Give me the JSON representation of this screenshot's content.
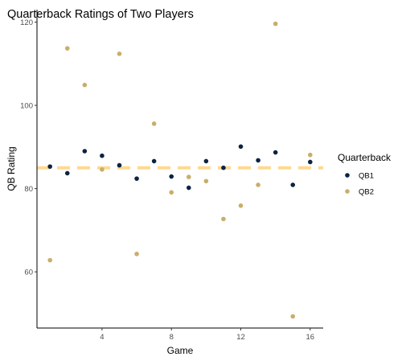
{
  "chart_data": {
    "type": "scatter",
    "title": "Quarterback Ratings of Two Players",
    "xlabel": "Game",
    "ylabel": "QB Rating",
    "xlim": [
      0.25,
      16.75
    ],
    "ylim": [
      46.5,
      123
    ],
    "xticks": [
      4,
      8,
      12,
      16
    ],
    "yticks": [
      60,
      80,
      100,
      120
    ],
    "grid": false,
    "legend_title": "Quarterback",
    "legend_position": "right",
    "reference_line": {
      "y": 85,
      "color": "#FFD990",
      "style": "dashed"
    },
    "series": [
      {
        "name": "QB1",
        "color": "#0C2340",
        "x": [
          1,
          2,
          3,
          4,
          5,
          6,
          7,
          8,
          9,
          10,
          11,
          12,
          13,
          14,
          15,
          16
        ],
        "y": [
          85.3,
          83.7,
          89.0,
          87.9,
          85.6,
          82.4,
          86.6,
          82.9,
          80.2,
          86.6,
          85.0,
          90.1,
          86.8,
          88.7,
          80.9,
          86.4
        ]
      },
      {
        "name": "QB2",
        "color": "#C9AE6A",
        "x": [
          1,
          2,
          3,
          4,
          5,
          6,
          7,
          8,
          9,
          10,
          11,
          12,
          13,
          14,
          15,
          16
        ],
        "y": [
          62.8,
          113.7,
          104.9,
          84.6,
          112.4,
          64.3,
          95.6,
          79.1,
          82.8,
          81.8,
          72.7,
          75.9,
          80.9,
          119.6,
          49.3,
          88.1
        ]
      }
    ]
  }
}
